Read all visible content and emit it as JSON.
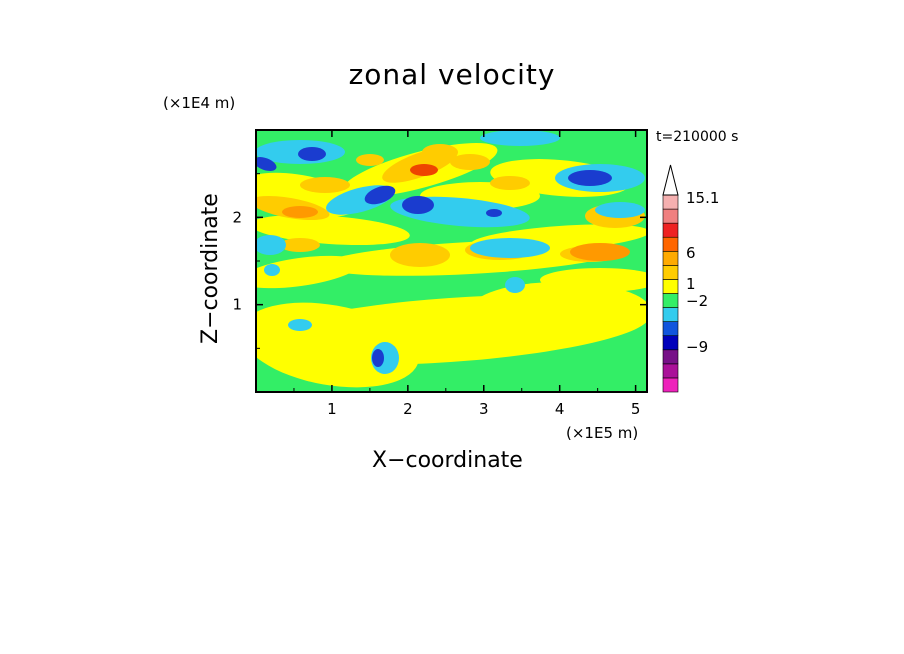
{
  "chart_data": {
    "type": "heatmap",
    "title": "zonal velocity",
    "xlabel": "X−coordinate",
    "ylabel": "Z−coordinate",
    "x_unit": "(×1E5 m)",
    "y_unit": "(×1E4 m)",
    "timestamp": "t=210000 s",
    "xlim": [
      0,
      5.15
    ],
    "ylim": [
      0,
      3.0
    ],
    "x_ticks": [
      "1",
      "2",
      "3",
      "4",
      "5"
    ],
    "x_tick_values": [
      1,
      2,
      3,
      4,
      5
    ],
    "y_ticks": [
      "1",
      "2"
    ],
    "y_tick_values": [
      1,
      2
    ],
    "colorbar": {
      "labels": [
        "15.1",
        "6",
        "1",
        "−2",
        "−9"
      ],
      "label_values": [
        15.1,
        6,
        1,
        -2,
        -9
      ],
      "colors": [
        "#ee22bb",
        "#aa1199",
        "#771188",
        "#0000bb",
        "#1155dd",
        "#33ccee",
        "#33ee66",
        "#ffff00",
        "#ffcc00",
        "#ffaa00",
        "#ff6600",
        "#ee2222",
        "#f08080",
        "#f5b0b0"
      ],
      "arrow_color": "#ffffff"
    },
    "field_palette": {
      "strong_negative": "#1a3ccf",
      "negative": "#33ccee",
      "weak_negative": "#33ee66",
      "near_zero": "#ffff00",
      "positive": "#ffcc00",
      "strong_positive": "#ff9900",
      "extreme_positive": "#ee4400"
    }
  }
}
